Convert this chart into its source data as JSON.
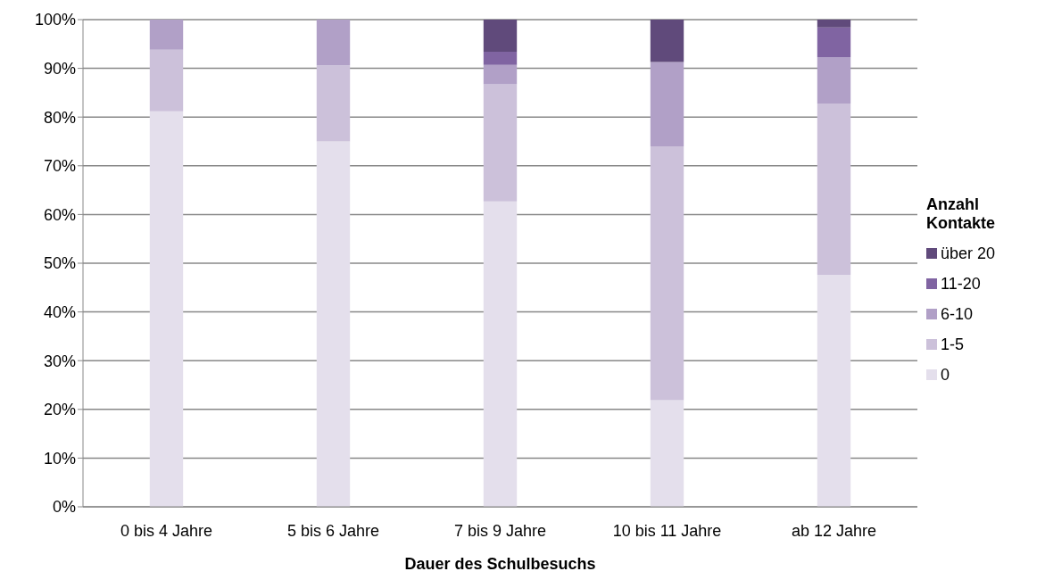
{
  "chart_data": {
    "type": "bar",
    "stacked": true,
    "xlabel": "Dauer des Schulbesuchs",
    "legend_title": "Anzahl Kontakte",
    "categories": [
      "0 bis 4 Jahre",
      "5 bis 6 Jahre",
      "7 bis 9 Jahre",
      "10 bis 11 Jahre",
      "ab 12 Jahre"
    ],
    "series": [
      {
        "name": "0",
        "color": "#e4dfec",
        "values": [
          81.2,
          75.0,
          62.7,
          21.9,
          47.6
        ]
      },
      {
        "name": "1-5",
        "color": "#ccc1da",
        "values": [
          12.6,
          15.6,
          24.0,
          52.1,
          35.2
        ]
      },
      {
        "name": "6-10",
        "color": "#b1a0c7",
        "values": [
          6.2,
          9.4,
          4.0,
          17.3,
          9.5
        ]
      },
      {
        "name": "11-20",
        "color": "#8064a2",
        "values": [
          0,
          0,
          2.7,
          0,
          6.1
        ]
      },
      {
        "name": "über 20",
        "color": "#604a7b",
        "values": [
          0,
          0,
          6.6,
          8.7,
          1.6
        ]
      }
    ],
    "ylim": [
      0,
      100
    ],
    "yticks": [
      {
        "value": 0,
        "label": "0%"
      },
      {
        "value": 10,
        "label": "10%"
      },
      {
        "value": 20,
        "label": "20%"
      },
      {
        "value": 30,
        "label": "30%"
      },
      {
        "value": 40,
        "label": "40%"
      },
      {
        "value": 50,
        "label": "50%"
      },
      {
        "value": 60,
        "label": "60%"
      },
      {
        "value": 70,
        "label": "70%"
      },
      {
        "value": 80,
        "label": "80%"
      },
      {
        "value": 90,
        "label": "90%"
      },
      {
        "value": 100,
        "label": "100%"
      }
    ],
    "grid": "y",
    "legend": "right"
  }
}
